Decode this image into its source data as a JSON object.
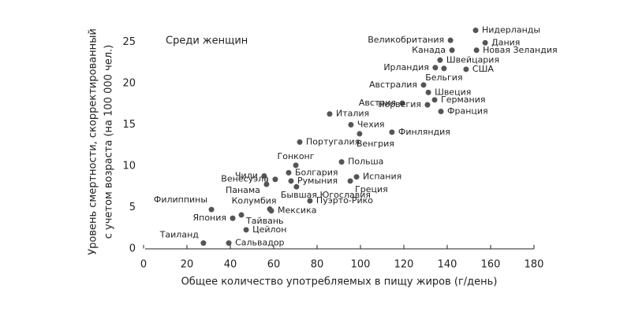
{
  "chart_data": {
    "type": "scatter",
    "annotation": "Среди женщин",
    "xlabel": "Общее количество употребляемых в пищу жиров (г/день)",
    "ylabel": [
      "Уровень смертности, скорректированный",
      "с учетом возраста (на 100 000 чел.)"
    ],
    "color": "#555555",
    "xlim": [
      0,
      180
    ],
    "ylim": [
      0,
      27.5
    ],
    "xticks": [
      0,
      20,
      40,
      60,
      80,
      100,
      120,
      140,
      160,
      180
    ],
    "yticks": [
      0,
      5,
      10,
      15,
      20,
      25
    ],
    "labels": [
      "Нидерланды",
      "Великобритания",
      "Дания",
      "Канада",
      "Новая Зеландия",
      "Швейцария",
      "Ирландия",
      "США",
      "Бельгия",
      "Австралия",
      "Швеция",
      "Австрия",
      "Германия",
      "Норвегия",
      "Франция",
      "Италия",
      "Чехия",
      "Финляндия",
      "Венгрия",
      "Португалия",
      "Польша",
      "Гонконг",
      "Чили",
      "Болгария",
      "Испания",
      "Венесуэла",
      "Панама",
      "Румыния",
      "Бывшая Югославия",
      "Греция",
      "Пуэрто-Рико",
      "Мексика",
      "Колумбия",
      "Филиппины",
      "Япония",
      "Тайвань",
      "Цейлон",
      "Таиланд",
      "Сальвадор"
    ],
    "x": [
      153.1,
      141.5,
      157.5,
      142.2,
      153.5,
      136.7,
      134.5,
      148.7,
      138.5,
      129.1,
      131.3,
      119.3,
      134.2,
      130.9,
      137.1,
      85.8,
      95.6,
      114.5,
      99.6,
      72,
      91.3,
      70.2,
      55.6,
      66.9,
      98.2,
      60.7,
      56.7,
      68,
      70.5,
      95.3,
      76.7,
      58.9,
      58.2,
      31.3,
      41.1,
      45.1,
      47.3,
      27.6,
      39.3
    ],
    "values": [
      26.4,
      25.2,
      24.9,
      24,
      24,
      22.8,
      21.9,
      21.7,
      21.8,
      19.8,
      18.9,
      17.6,
      18,
      17.4,
      16.6,
      16.3,
      15,
      14.1,
      13.9,
      12.9,
      10.5,
      10.1,
      8.8,
      9.2,
      8.7,
      8.4,
      7.8,
      8.2,
      7.5,
      8.2,
      5.8,
      4.6,
      4.8,
      4.75,
      3.7,
      4.1,
      2.3,
      0.7,
      0.7
    ]
  }
}
